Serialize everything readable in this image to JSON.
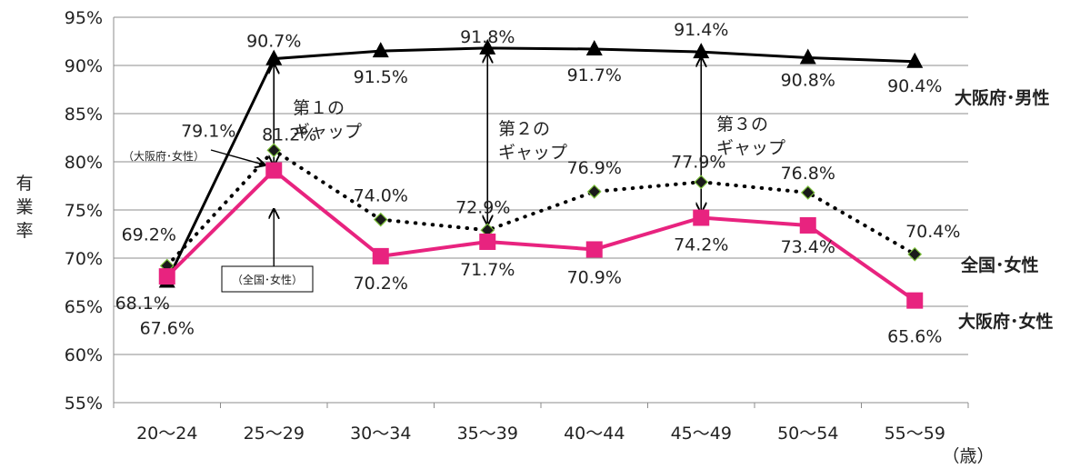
{
  "chart_data": {
    "type": "line",
    "title": "",
    "ylabel": "有業率",
    "xunit": "（歳）",
    "categories": [
      "20～24",
      "25～29",
      "30～34",
      "35～39",
      "40～44",
      "45～49",
      "50～54",
      "55～59"
    ],
    "ylim": [
      55,
      95
    ],
    "yticks": [
      55,
      60,
      65,
      70,
      75,
      80,
      85,
      90,
      95
    ],
    "ytick_labels": [
      "55%",
      "60%",
      "65%",
      "70%",
      "75%",
      "80%",
      "85%",
      "90%",
      "95%"
    ],
    "grid": true,
    "series": [
      {
        "name": "大阪府･男性",
        "values": [
          67.6,
          90.7,
          91.5,
          91.8,
          91.7,
          91.4,
          90.8,
          90.4
        ],
        "labels": [
          "67.6%",
          "90.7%",
          "91.5%",
          "91.8%",
          "91.7%",
          "91.4%",
          "90.8%",
          "90.4%"
        ],
        "color": "#000000",
        "marker": "triangle",
        "style": "solid"
      },
      {
        "name": "全国･女性",
        "values": [
          69.2,
          81.2,
          74.0,
          72.9,
          76.9,
          77.9,
          76.8,
          70.4
        ],
        "labels": [
          "69.2%",
          "81.2%",
          "74.0%",
          "72.9%",
          "76.9%",
          "77.9%",
          "76.8%",
          "70.4%"
        ],
        "color": "#000000",
        "marker": "diamond",
        "style": "dotted"
      },
      {
        "name": "大阪府･女性",
        "values": [
          68.1,
          79.1,
          70.2,
          71.7,
          70.9,
          74.2,
          73.4,
          65.6
        ],
        "labels": [
          "68.1%",
          "79.1%",
          "70.2%",
          "71.7%",
          "70.9%",
          "74.2%",
          "73.4%",
          "65.6%"
        ],
        "color": "#e8237f",
        "marker": "square",
        "style": "solid"
      }
    ],
    "annotations": {
      "gap1_line1": "第１の",
      "gap1_line2": "ギャップ",
      "gap2_line1": "第２の",
      "gap2_line2": "ギャップ",
      "gap3_line1": "第３の",
      "gap3_line2": "ギャップ",
      "callout_osaka_women": "（大阪府･女性）",
      "callout_national_women": "（全国･女性）"
    }
  }
}
